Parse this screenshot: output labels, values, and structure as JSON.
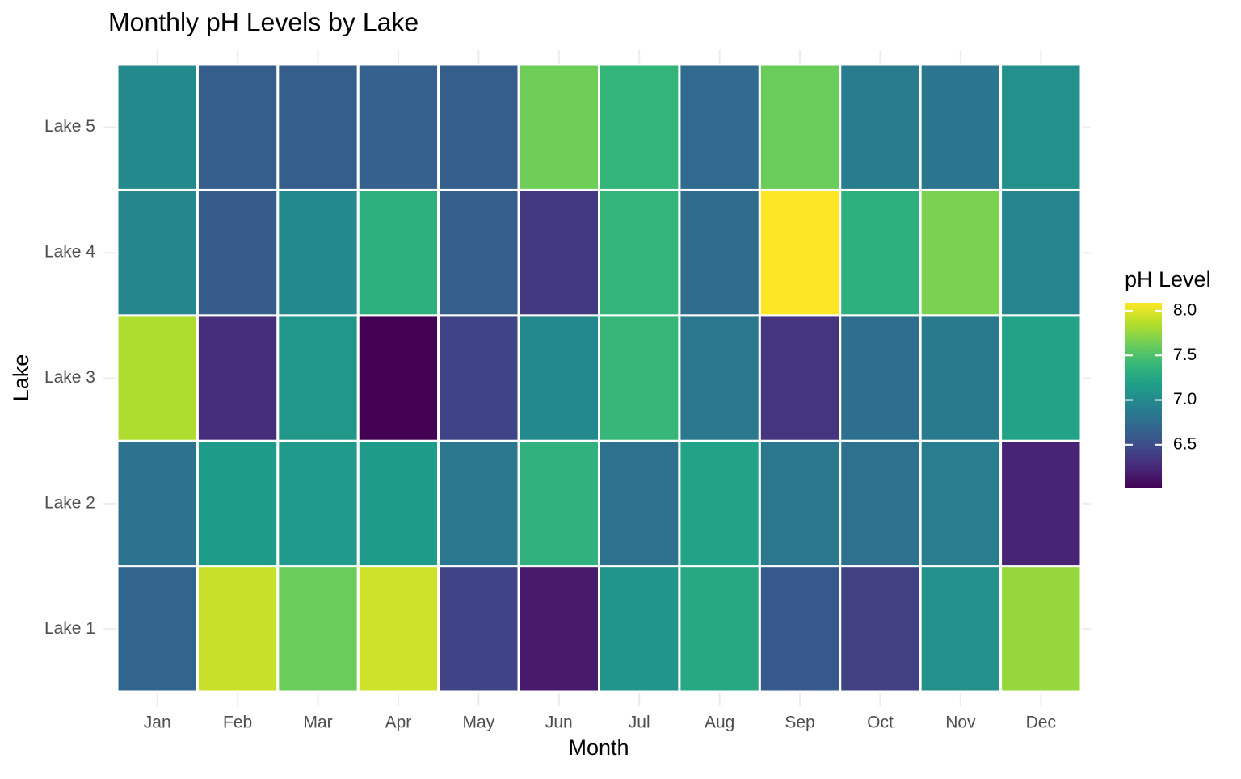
{
  "chart_data": {
    "type": "heatmap",
    "title": "Monthly pH Levels by Lake",
    "x_label": "Month",
    "y_label": "Lake",
    "x": [
      "Jan",
      "Feb",
      "Mar",
      "Apr",
      "May",
      "Jun",
      "Jul",
      "Aug",
      "Sep",
      "Oct",
      "Nov",
      "Dec"
    ],
    "y": [
      "Lake 1",
      "Lake 2",
      "Lake 3",
      "Lake 4",
      "Lake 5"
    ],
    "values": [
      [
        6.68,
        7.92,
        7.61,
        7.94,
        6.43,
        6.16,
        7.09,
        7.26,
        6.59,
        6.41,
        7.05,
        7.76
      ],
      [
        6.8,
        7.15,
        7.13,
        7.15,
        6.84,
        7.34,
        6.78,
        7.2,
        6.84,
        6.78,
        6.9,
        6.22
      ],
      [
        7.84,
        6.28,
        7.11,
        6.01,
        6.43,
        6.99,
        7.4,
        6.84,
        6.32,
        6.76,
        6.86,
        7.2
      ],
      [
        6.97,
        6.61,
        6.99,
        7.32,
        6.63,
        6.36,
        7.38,
        6.74,
        8.09,
        7.32,
        7.67,
        6.95
      ],
      [
        6.99,
        6.63,
        6.63,
        6.65,
        6.63,
        7.63,
        7.38,
        6.72,
        7.61,
        6.88,
        6.82,
        7.05
      ]
    ],
    "legend_title": "pH Level",
    "colorlim": [
      6.01,
      8.09
    ],
    "colorticks": [
      {
        "value": 6.5,
        "label": "6.5"
      },
      {
        "value": 7.0,
        "label": "7.0"
      },
      {
        "value": 7.5,
        "label": "7.5"
      },
      {
        "value": 8.0,
        "label": "8.0"
      }
    ],
    "colorscale": [
      "#440154",
      "#482878",
      "#3e4a89",
      "#31688e",
      "#26828e",
      "#1f9e89",
      "#35b779",
      "#6ece58",
      "#b5de2b",
      "#fde725"
    ],
    "grid": true
  }
}
